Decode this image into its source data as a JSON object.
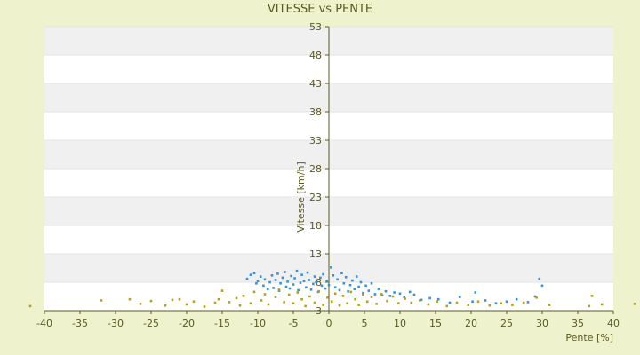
{
  "chart_data": {
    "type": "scatter",
    "title": "VITESSE vs PENTE",
    "xlabel": "Pente [%]",
    "ylabel": "Vitesse [km/h]",
    "xlim": [
      -40,
      40
    ],
    "ylim": [
      3,
      53
    ],
    "x_ticks": [
      -40,
      -35,
      -30,
      -25,
      -20,
      -15,
      -10,
      -5,
      0,
      5,
      10,
      15,
      20,
      25,
      30,
      35,
      40
    ],
    "y_ticks": [
      3,
      8,
      13,
      18,
      23,
      28,
      33,
      38,
      43,
      48,
      53
    ],
    "grid": "horizontal bands",
    "legend": "none",
    "colors": {
      "background": "#eef3cd",
      "plot_band_light": "#ffffff",
      "plot_band_dark": "#f0f0f0",
      "axis": "#5a5a1e",
      "series_blue": "#3b8fd8",
      "series_olive": "#b5a21c"
    },
    "series": [
      {
        "color": "#3b8fd8",
        "points": [
          [
            -11.5,
            8.6
          ],
          [
            -11.0,
            9.3
          ],
          [
            -10.5,
            9.6
          ],
          [
            -10.2,
            7.8
          ],
          [
            -10.0,
            8.2
          ],
          [
            -9.6,
            9.0
          ],
          [
            -9.2,
            7.4
          ],
          [
            -9.0,
            8.5
          ],
          [
            -8.6,
            6.8
          ],
          [
            -8.3,
            8.0
          ],
          [
            -8.0,
            9.2
          ],
          [
            -7.8,
            7.0
          ],
          [
            -7.5,
            8.4
          ],
          [
            -7.2,
            9.5
          ],
          [
            -7.0,
            6.5
          ],
          [
            -6.8,
            7.8
          ],
          [
            -6.5,
            8.8
          ],
          [
            -6.2,
            9.8
          ],
          [
            -6.0,
            7.2
          ],
          [
            -5.8,
            8.1
          ],
          [
            -5.5,
            6.9
          ],
          [
            -5.3,
            9.1
          ],
          [
            -5.0,
            7.6
          ],
          [
            -4.8,
            8.7
          ],
          [
            -4.5,
            10.0
          ],
          [
            -4.3,
            6.6
          ],
          [
            -4.0,
            7.9
          ],
          [
            -3.8,
            9.3
          ],
          [
            -3.5,
            8.2
          ],
          [
            -3.2,
            7.1
          ],
          [
            -3.0,
            9.7
          ],
          [
            -2.8,
            8.4
          ],
          [
            -2.5,
            6.7
          ],
          [
            -2.2,
            7.7
          ],
          [
            -2.0,
            9.0
          ],
          [
            -1.8,
            8.0
          ],
          [
            -1.5,
            6.3
          ],
          [
            -1.2,
            8.8
          ],
          [
            -1.0,
            7.4
          ],
          [
            -0.8,
            9.4
          ],
          [
            -0.5,
            6.9
          ],
          [
            -0.3,
            8.2
          ],
          [
            0.0,
            7.5
          ],
          [
            0.3,
            10.6
          ],
          [
            0.6,
            9.2
          ],
          [
            0.9,
            7.1
          ],
          [
            1.2,
            8.5
          ],
          [
            1.5,
            6.6
          ],
          [
            1.8,
            9.6
          ],
          [
            2.1,
            7.8
          ],
          [
            2.4,
            8.9
          ],
          [
            2.7,
            6.4
          ],
          [
            3.0,
            7.5
          ],
          [
            3.3,
            8.3
          ],
          [
            3.6,
            6.8
          ],
          [
            3.9,
            9.0
          ],
          [
            4.2,
            7.2
          ],
          [
            4.5,
            8.0
          ],
          [
            4.8,
            6.1
          ],
          [
            5.2,
            7.4
          ],
          [
            5.6,
            6.5
          ],
          [
            6.0,
            7.8
          ],
          [
            6.5,
            5.9
          ],
          [
            7.0,
            6.8
          ],
          [
            7.5,
            5.7
          ],
          [
            8.0,
            6.4
          ],
          [
            8.6,
            5.6
          ],
          [
            9.2,
            6.2
          ],
          [
            10.0,
            6.0
          ],
          [
            10.6,
            5.4
          ],
          [
            11.4,
            6.3
          ],
          [
            12.0,
            5.8
          ],
          [
            13.0,
            4.9
          ],
          [
            14.2,
            5.2
          ],
          [
            15.4,
            5.0
          ],
          [
            17.0,
            4.4
          ],
          [
            18.4,
            5.4
          ],
          [
            20.2,
            4.6
          ],
          [
            20.6,
            6.2
          ],
          [
            22.0,
            4.8
          ],
          [
            23.5,
            4.3
          ],
          [
            25.0,
            4.6
          ],
          [
            26.4,
            5.0
          ],
          [
            28.0,
            4.5
          ],
          [
            29.0,
            5.5
          ],
          [
            29.6,
            8.6
          ],
          [
            30.0,
            7.4
          ]
        ]
      },
      {
        "color": "#b5a21c",
        "points": [
          [
            -42.0,
            3.8
          ],
          [
            -32.0,
            4.8
          ],
          [
            -28.0,
            5.0
          ],
          [
            -26.5,
            4.2
          ],
          [
            -25.0,
            4.7
          ],
          [
            -23.0,
            3.9
          ],
          [
            -22.0,
            4.9
          ],
          [
            -21.0,
            5.0
          ],
          [
            -20.0,
            4.1
          ],
          [
            -19.0,
            4.6
          ],
          [
            -17.5,
            3.7
          ],
          [
            -16.0,
            4.4
          ],
          [
            -15.5,
            5.0
          ],
          [
            -15.0,
            6.5
          ],
          [
            -14.0,
            4.5
          ],
          [
            -13.0,
            5.2
          ],
          [
            -12.5,
            3.9
          ],
          [
            -12.0,
            5.6
          ],
          [
            -11.0,
            4.3
          ],
          [
            -10.5,
            6.3
          ],
          [
            -9.5,
            4.8
          ],
          [
            -9.0,
            5.9
          ],
          [
            -8.5,
            4.1
          ],
          [
            -7.5,
            5.4
          ],
          [
            -7.0,
            6.7
          ],
          [
            -6.3,
            4.5
          ],
          [
            -5.6,
            5.8
          ],
          [
            -5.0,
            4.3
          ],
          [
            -4.4,
            6.2
          ],
          [
            -3.8,
            5.0
          ],
          [
            -3.3,
            3.8
          ],
          [
            -2.7,
            5.5
          ],
          [
            -2.0,
            4.4
          ],
          [
            -1.4,
            6.4
          ],
          [
            -0.8,
            4.0
          ],
          [
            -0.2,
            5.3
          ],
          [
            0.4,
            4.6
          ],
          [
            0.9,
            6.0
          ],
          [
            1.5,
            3.9
          ],
          [
            2.0,
            5.6
          ],
          [
            2.6,
            4.3
          ],
          [
            3.1,
            6.3
          ],
          [
            3.7,
            5.0
          ],
          [
            4.2,
            4.0
          ],
          [
            4.8,
            5.8
          ],
          [
            5.4,
            4.6
          ],
          [
            6.0,
            5.4
          ],
          [
            6.7,
            4.2
          ],
          [
            7.4,
            5.9
          ],
          [
            8.2,
            4.7
          ],
          [
            9.0,
            5.5
          ],
          [
            9.8,
            4.3
          ],
          [
            10.7,
            5.1
          ],
          [
            11.6,
            4.4
          ],
          [
            12.8,
            4.8
          ],
          [
            14.0,
            4.1
          ],
          [
            15.2,
            4.6
          ],
          [
            16.6,
            3.8
          ],
          [
            18.0,
            4.4
          ],
          [
            19.6,
            4.0
          ],
          [
            21.0,
            4.6
          ],
          [
            22.6,
            3.9
          ],
          [
            24.2,
            4.3
          ],
          [
            25.8,
            4.0
          ],
          [
            27.4,
            4.4
          ],
          [
            29.2,
            5.3
          ],
          [
            31.0,
            4.0
          ],
          [
            36.6,
            3.8
          ],
          [
            37.0,
            5.6
          ],
          [
            38.4,
            4.1
          ],
          [
            43.0,
            4.2
          ]
        ]
      }
    ]
  }
}
